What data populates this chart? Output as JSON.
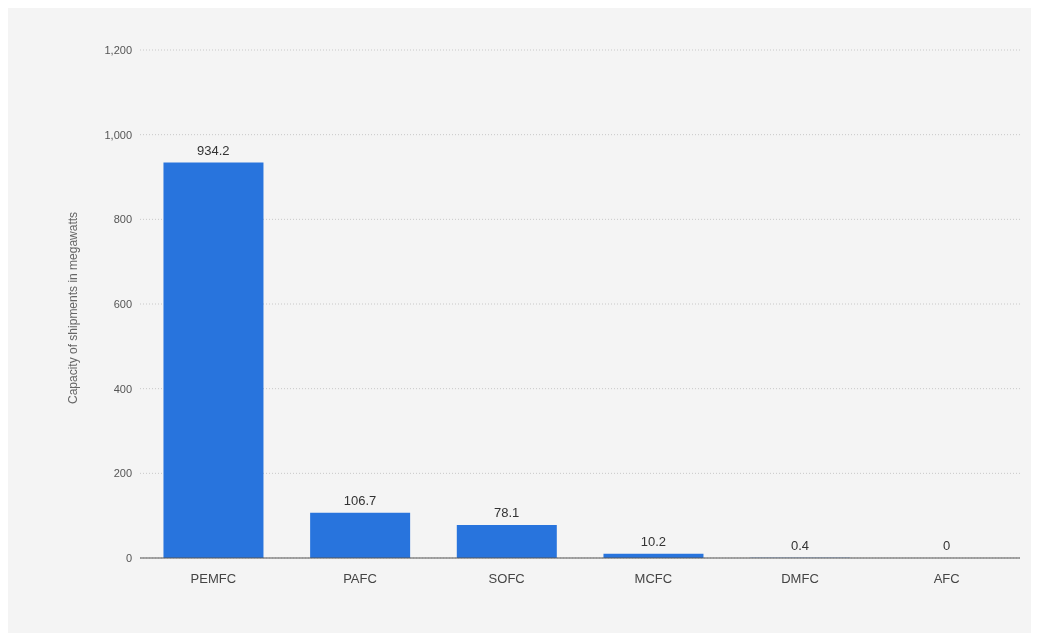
{
  "chart_data": {
    "type": "bar",
    "ylabel": "Capacity of shipments in megawatts",
    "categories": [
      "PEMFC",
      "PAFC",
      "SOFC",
      "MCFC",
      "DMFC",
      "AFC"
    ],
    "values": [
      934.2,
      106.7,
      78.1,
      10.2,
      0.4,
      0
    ],
    "color": "#2874dd",
    "ylim": [
      0,
      1200
    ],
    "yticks": [
      {
        "value": 0,
        "label": "0"
      },
      {
        "value": 200,
        "label": "200"
      },
      {
        "value": 400,
        "label": "400"
      },
      {
        "value": 600,
        "label": "600"
      },
      {
        "value": 800,
        "label": "800"
      },
      {
        "value": 1000,
        "label": "1,000"
      },
      {
        "value": 1200,
        "label": "1,200"
      }
    ],
    "grid": "y",
    "data_labels": true
  }
}
